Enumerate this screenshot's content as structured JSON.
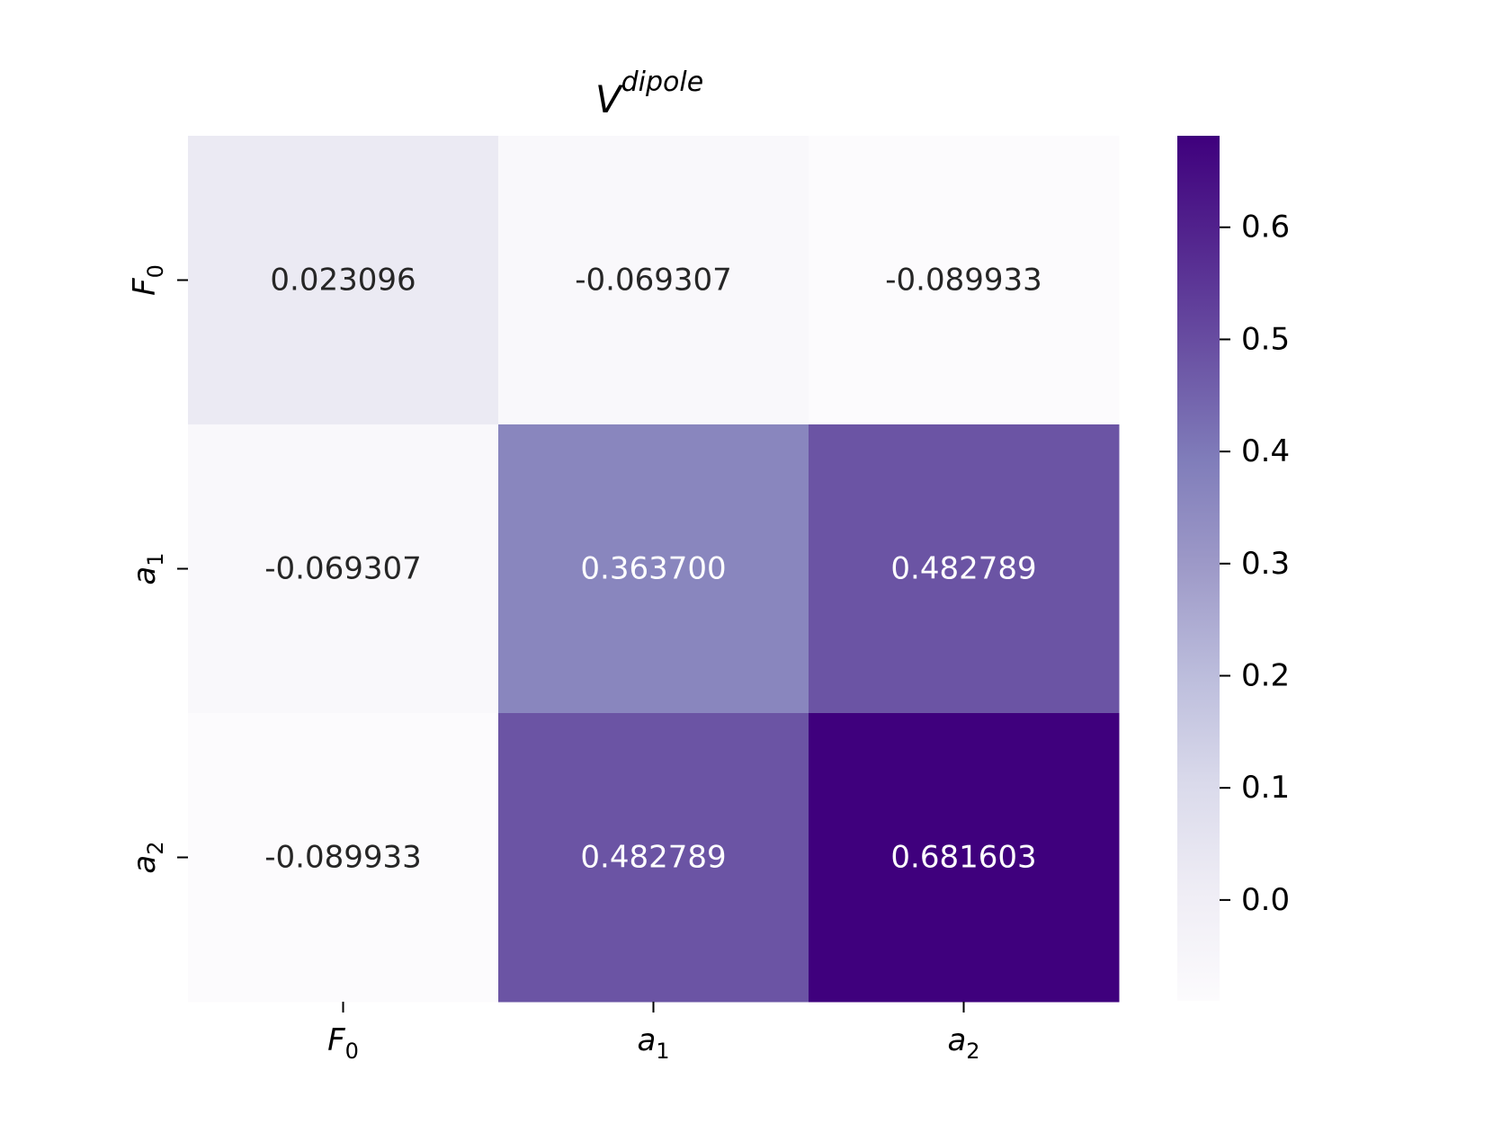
{
  "chart_data": {
    "type": "heatmap",
    "title": {
      "base": "V",
      "superscript": "dipole"
    },
    "row_labels": [
      {
        "base": "F",
        "sub": "0"
      },
      {
        "base": "a",
        "sub": "1"
      },
      {
        "base": "a",
        "sub": "2"
      }
    ],
    "col_labels": [
      {
        "base": "F",
        "sub": "0"
      },
      {
        "base": "a",
        "sub": "1"
      },
      {
        "base": "a",
        "sub": "2"
      }
    ],
    "values": [
      [
        0.023096,
        -0.069307,
        -0.089933
      ],
      [
        -0.069307,
        0.3637,
        0.482789
      ],
      [
        -0.089933,
        0.482789,
        0.681603
      ]
    ],
    "cell_labels": [
      [
        "0.023096",
        "-0.069307",
        "-0.089933"
      ],
      [
        "-0.069307",
        "0.363700",
        "0.482789"
      ],
      [
        "-0.089933",
        "0.482789",
        "0.681603"
      ]
    ],
    "colormap": "Purples",
    "colors": {
      "low": "#fcfbfd",
      "high": "#3f007d",
      "dark_text": "#262626",
      "light_text": "#ffffff"
    },
    "colorbar": {
      "range": [
        -0.089933,
        0.681603
      ],
      "ticks": [
        0.0,
        0.1,
        0.2,
        0.3,
        0.4,
        0.5,
        0.6
      ],
      "tick_labels": [
        "0.0",
        "0.1",
        "0.2",
        "0.3",
        "0.4",
        "0.5",
        "0.6"
      ],
      "placement": "right"
    }
  }
}
